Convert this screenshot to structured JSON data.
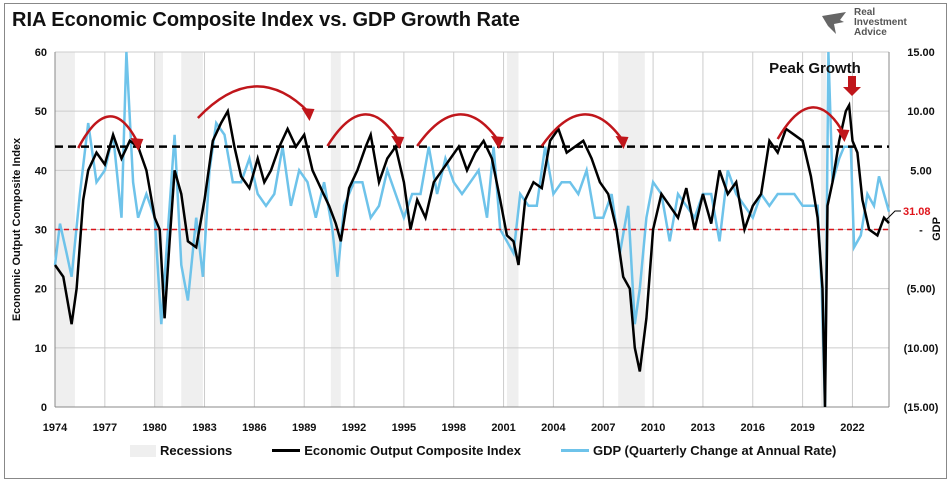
{
  "title": "RIA Economic Composite Index vs. GDP Growth Rate",
  "logo": {
    "lines": [
      "Real",
      "Investment",
      "Advice"
    ]
  },
  "chart_data": {
    "type": "line",
    "title": "RIA Economic Composite Index vs. GDP Growth Rate",
    "ylabel": "Economic Output Composite Index",
    "y2label": "GDP",
    "ylim": [
      0,
      60
    ],
    "y2lim": [
      -15,
      15
    ],
    "xlim": [
      1974,
      2024.2
    ],
    "yticks": [
      "0",
      "10",
      "20",
      "30",
      "40",
      "50",
      "60"
    ],
    "y2ticks": [
      "(15.00)",
      "(10.00)",
      "(5.00)",
      "-",
      "5.00",
      "10.00",
      "15.00"
    ],
    "xticks": [
      "1974",
      "1977",
      "1980",
      "1983",
      "1986",
      "1989",
      "1992",
      "1995",
      "1998",
      "2001",
      "2004",
      "2007",
      "2010",
      "2013",
      "2016",
      "2019",
      "2022"
    ],
    "grid": true,
    "legend_position": "bottom",
    "recessions": [
      [
        1974,
        1975.2
      ],
      [
        1980,
        1980.5
      ],
      [
        1981.6,
        1982.9
      ],
      [
        1990.6,
        1991.2
      ],
      [
        2001.2,
        2001.9
      ],
      [
        2007.9,
        2009.5
      ],
      [
        2020.1,
        2020.4
      ]
    ],
    "reference_lines": {
      "upper": 44,
      "lower": 30
    },
    "colors": {
      "composite": "#000000",
      "gdp": "#6ec3ea",
      "recession": "#efefef",
      "arrow": "#c0161b",
      "lower_line": "#d9141b"
    },
    "series": [
      {
        "name": "Economic Output Composite Index",
        "axis": "left",
        "points": [
          [
            1974.0,
            24
          ],
          [
            1974.5,
            22
          ],
          [
            1975.0,
            14
          ],
          [
            1975.3,
            20
          ],
          [
            1975.7,
            35
          ],
          [
            1976.0,
            40
          ],
          [
            1976.5,
            43
          ],
          [
            1977.0,
            41
          ],
          [
            1977.5,
            46
          ],
          [
            1978.0,
            42
          ],
          [
            1978.5,
            45
          ],
          [
            1979.0,
            44
          ],
          [
            1979.5,
            40
          ],
          [
            1980.0,
            32
          ],
          [
            1980.3,
            30
          ],
          [
            1980.6,
            15
          ],
          [
            1980.9,
            28
          ],
          [
            1981.2,
            40
          ],
          [
            1981.6,
            36
          ],
          [
            1982.0,
            28
          ],
          [
            1982.5,
            27
          ],
          [
            1983.0,
            35
          ],
          [
            1983.5,
            45
          ],
          [
            1984.0,
            48
          ],
          [
            1984.4,
            50
          ],
          [
            1984.8,
            44
          ],
          [
            1985.2,
            39
          ],
          [
            1985.7,
            37
          ],
          [
            1986.2,
            42
          ],
          [
            1986.6,
            38
          ],
          [
            1987.0,
            40
          ],
          [
            1987.5,
            44
          ],
          [
            1988.0,
            47
          ],
          [
            1988.5,
            44
          ],
          [
            1989.0,
            46
          ],
          [
            1989.5,
            40
          ],
          [
            1990.0,
            37
          ],
          [
            1990.5,
            34
          ],
          [
            1990.9,
            31
          ],
          [
            1991.2,
            28
          ],
          [
            1991.7,
            37
          ],
          [
            1992.2,
            40
          ],
          [
            1992.7,
            44
          ],
          [
            1993.0,
            46
          ],
          [
            1993.5,
            38
          ],
          [
            1994.0,
            42
          ],
          [
            1994.5,
            44
          ],
          [
            1995.0,
            38
          ],
          [
            1995.4,
            30
          ],
          [
            1995.8,
            35
          ],
          [
            1996.3,
            32
          ],
          [
            1996.8,
            38
          ],
          [
            1997.3,
            40
          ],
          [
            1997.8,
            42
          ],
          [
            1998.3,
            44
          ],
          [
            1998.8,
            40
          ],
          [
            1999.3,
            43
          ],
          [
            1999.8,
            45
          ],
          [
            2000.3,
            42
          ],
          [
            2000.8,
            35
          ],
          [
            2001.2,
            29
          ],
          [
            2001.6,
            28
          ],
          [
            2001.9,
            24
          ],
          [
            2002.3,
            35
          ],
          [
            2002.8,
            38
          ],
          [
            2003.3,
            37
          ],
          [
            2003.8,
            45
          ],
          [
            2004.3,
            47
          ],
          [
            2004.8,
            43
          ],
          [
            2005.3,
            44
          ],
          [
            2005.8,
            45
          ],
          [
            2006.3,
            42
          ],
          [
            2006.8,
            38
          ],
          [
            2007.3,
            36
          ],
          [
            2007.8,
            30
          ],
          [
            2008.2,
            22
          ],
          [
            2008.6,
            20
          ],
          [
            2008.9,
            10
          ],
          [
            2009.2,
            6
          ],
          [
            2009.6,
            15
          ],
          [
            2010.0,
            30
          ],
          [
            2010.5,
            36
          ],
          [
            2011.0,
            34
          ],
          [
            2011.5,
            32
          ],
          [
            2012.0,
            37
          ],
          [
            2012.5,
            30
          ],
          [
            2013.0,
            36
          ],
          [
            2013.5,
            31
          ],
          [
            2014.0,
            40
          ],
          [
            2014.5,
            36
          ],
          [
            2015.0,
            38
          ],
          [
            2015.5,
            30
          ],
          [
            2016.0,
            34
          ],
          [
            2016.5,
            36
          ],
          [
            2017.0,
            45
          ],
          [
            2017.5,
            43
          ],
          [
            2018.0,
            47
          ],
          [
            2018.5,
            46
          ],
          [
            2019.0,
            45
          ],
          [
            2019.5,
            39
          ],
          [
            2019.9,
            32
          ],
          [
            2020.2,
            20
          ],
          [
            2020.35,
            0
          ],
          [
            2020.5,
            34
          ],
          [
            2020.8,
            38
          ],
          [
            2021.2,
            45
          ],
          [
            2021.6,
            50
          ],
          [
            2021.8,
            51
          ],
          [
            2022.0,
            45
          ],
          [
            2022.3,
            43
          ],
          [
            2022.6,
            35
          ],
          [
            2023.0,
            30
          ],
          [
            2023.5,
            29
          ],
          [
            2023.9,
            32
          ],
          [
            2024.2,
            31.08
          ]
        ]
      },
      {
        "name": "GDP (Quarterly Change at Annual Rate)",
        "axis": "right",
        "points": [
          [
            1974.0,
            -3
          ],
          [
            1974.3,
            0.5
          ],
          [
            1974.7,
            -2
          ],
          [
            1975.0,
            -4
          ],
          [
            1975.5,
            3
          ],
          [
            1976.0,
            9
          ],
          [
            1976.5,
            4
          ],
          [
            1977.0,
            5
          ],
          [
            1977.5,
            8
          ],
          [
            1978.0,
            1
          ],
          [
            1978.3,
            16
          ],
          [
            1978.7,
            4
          ],
          [
            1979.0,
            1
          ],
          [
            1979.5,
            3
          ],
          [
            1980.0,
            1
          ],
          [
            1980.4,
            -8
          ],
          [
            1980.8,
            0
          ],
          [
            1981.2,
            8
          ],
          [
            1981.6,
            -3
          ],
          [
            1982.0,
            -6
          ],
          [
            1982.5,
            1
          ],
          [
            1982.9,
            -4
          ],
          [
            1983.3,
            5
          ],
          [
            1983.7,
            9
          ],
          [
            1984.2,
            8
          ],
          [
            1984.7,
            4
          ],
          [
            1985.2,
            4
          ],
          [
            1985.7,
            6
          ],
          [
            1986.2,
            3
          ],
          [
            1986.7,
            2
          ],
          [
            1987.2,
            3
          ],
          [
            1987.7,
            7
          ],
          [
            1988.2,
            2
          ],
          [
            1988.7,
            5
          ],
          [
            1989.2,
            4
          ],
          [
            1989.7,
            1
          ],
          [
            1990.2,
            4
          ],
          [
            1990.7,
            0
          ],
          [
            1991.0,
            -4
          ],
          [
            1991.4,
            2
          ],
          [
            1992.0,
            4
          ],
          [
            1992.5,
            4
          ],
          [
            1993.0,
            1
          ],
          [
            1993.5,
            2
          ],
          [
            1994.0,
            5
          ],
          [
            1994.5,
            3
          ],
          [
            1995.0,
            1
          ],
          [
            1995.5,
            3
          ],
          [
            1996.0,
            3
          ],
          [
            1996.5,
            7
          ],
          [
            1997.0,
            3
          ],
          [
            1997.5,
            6
          ],
          [
            1998.0,
            4
          ],
          [
            1998.5,
            3
          ],
          [
            1999.0,
            4
          ],
          [
            1999.5,
            5
          ],
          [
            2000.0,
            1
          ],
          [
            2000.4,
            7
          ],
          [
            2000.8,
            0
          ],
          [
            2001.2,
            -1
          ],
          [
            2001.6,
            -2
          ],
          [
            2002.0,
            3
          ],
          [
            2002.5,
            2
          ],
          [
            2003.0,
            2
          ],
          [
            2003.5,
            7
          ],
          [
            2004.0,
            3
          ],
          [
            2004.5,
            4
          ],
          [
            2005.0,
            4
          ],
          [
            2005.5,
            3
          ],
          [
            2006.0,
            5
          ],
          [
            2006.5,
            1
          ],
          [
            2007.0,
            1
          ],
          [
            2007.5,
            3
          ],
          [
            2008.0,
            -2
          ],
          [
            2008.5,
            2
          ],
          [
            2008.9,
            -8
          ],
          [
            2009.2,
            -5
          ],
          [
            2009.6,
            1
          ],
          [
            2010.0,
            4
          ],
          [
            2010.5,
            3
          ],
          [
            2011.0,
            -1
          ],
          [
            2011.5,
            3
          ],
          [
            2012.0,
            2
          ],
          [
            2012.5,
            1
          ],
          [
            2013.0,
            3
          ],
          [
            2013.5,
            3
          ],
          [
            2014.0,
            -1
          ],
          [
            2014.5,
            5
          ],
          [
            2015.0,
            3
          ],
          [
            2015.5,
            2
          ],
          [
            2016.0,
            1
          ],
          [
            2016.5,
            3
          ],
          [
            2017.0,
            2
          ],
          [
            2017.5,
            3
          ],
          [
            2018.0,
            3
          ],
          [
            2018.5,
            3
          ],
          [
            2019.0,
            2
          ],
          [
            2019.5,
            2
          ],
          [
            2019.9,
            2
          ],
          [
            2020.15,
            -5
          ],
          [
            2020.35,
            -31
          ],
          [
            2020.55,
            33
          ],
          [
            2020.8,
            4
          ],
          [
            2021.2,
            6
          ],
          [
            2021.5,
            7
          ],
          [
            2021.9,
            7
          ],
          [
            2022.1,
            -1.5
          ],
          [
            2022.5,
            -0.5
          ],
          [
            2022.9,
            3
          ],
          [
            2023.3,
            2
          ],
          [
            2023.6,
            4.5
          ],
          [
            2023.9,
            3
          ],
          [
            2024.2,
            1.5
          ]
        ]
      }
    ],
    "annotations": {
      "peak_label": "Peak Growth",
      "last_value": "31.08"
    },
    "legend": [
      "Recessions",
      "Economic Output Composite Index",
      "GDP (Quarterly Change at Annual Rate)"
    ]
  }
}
